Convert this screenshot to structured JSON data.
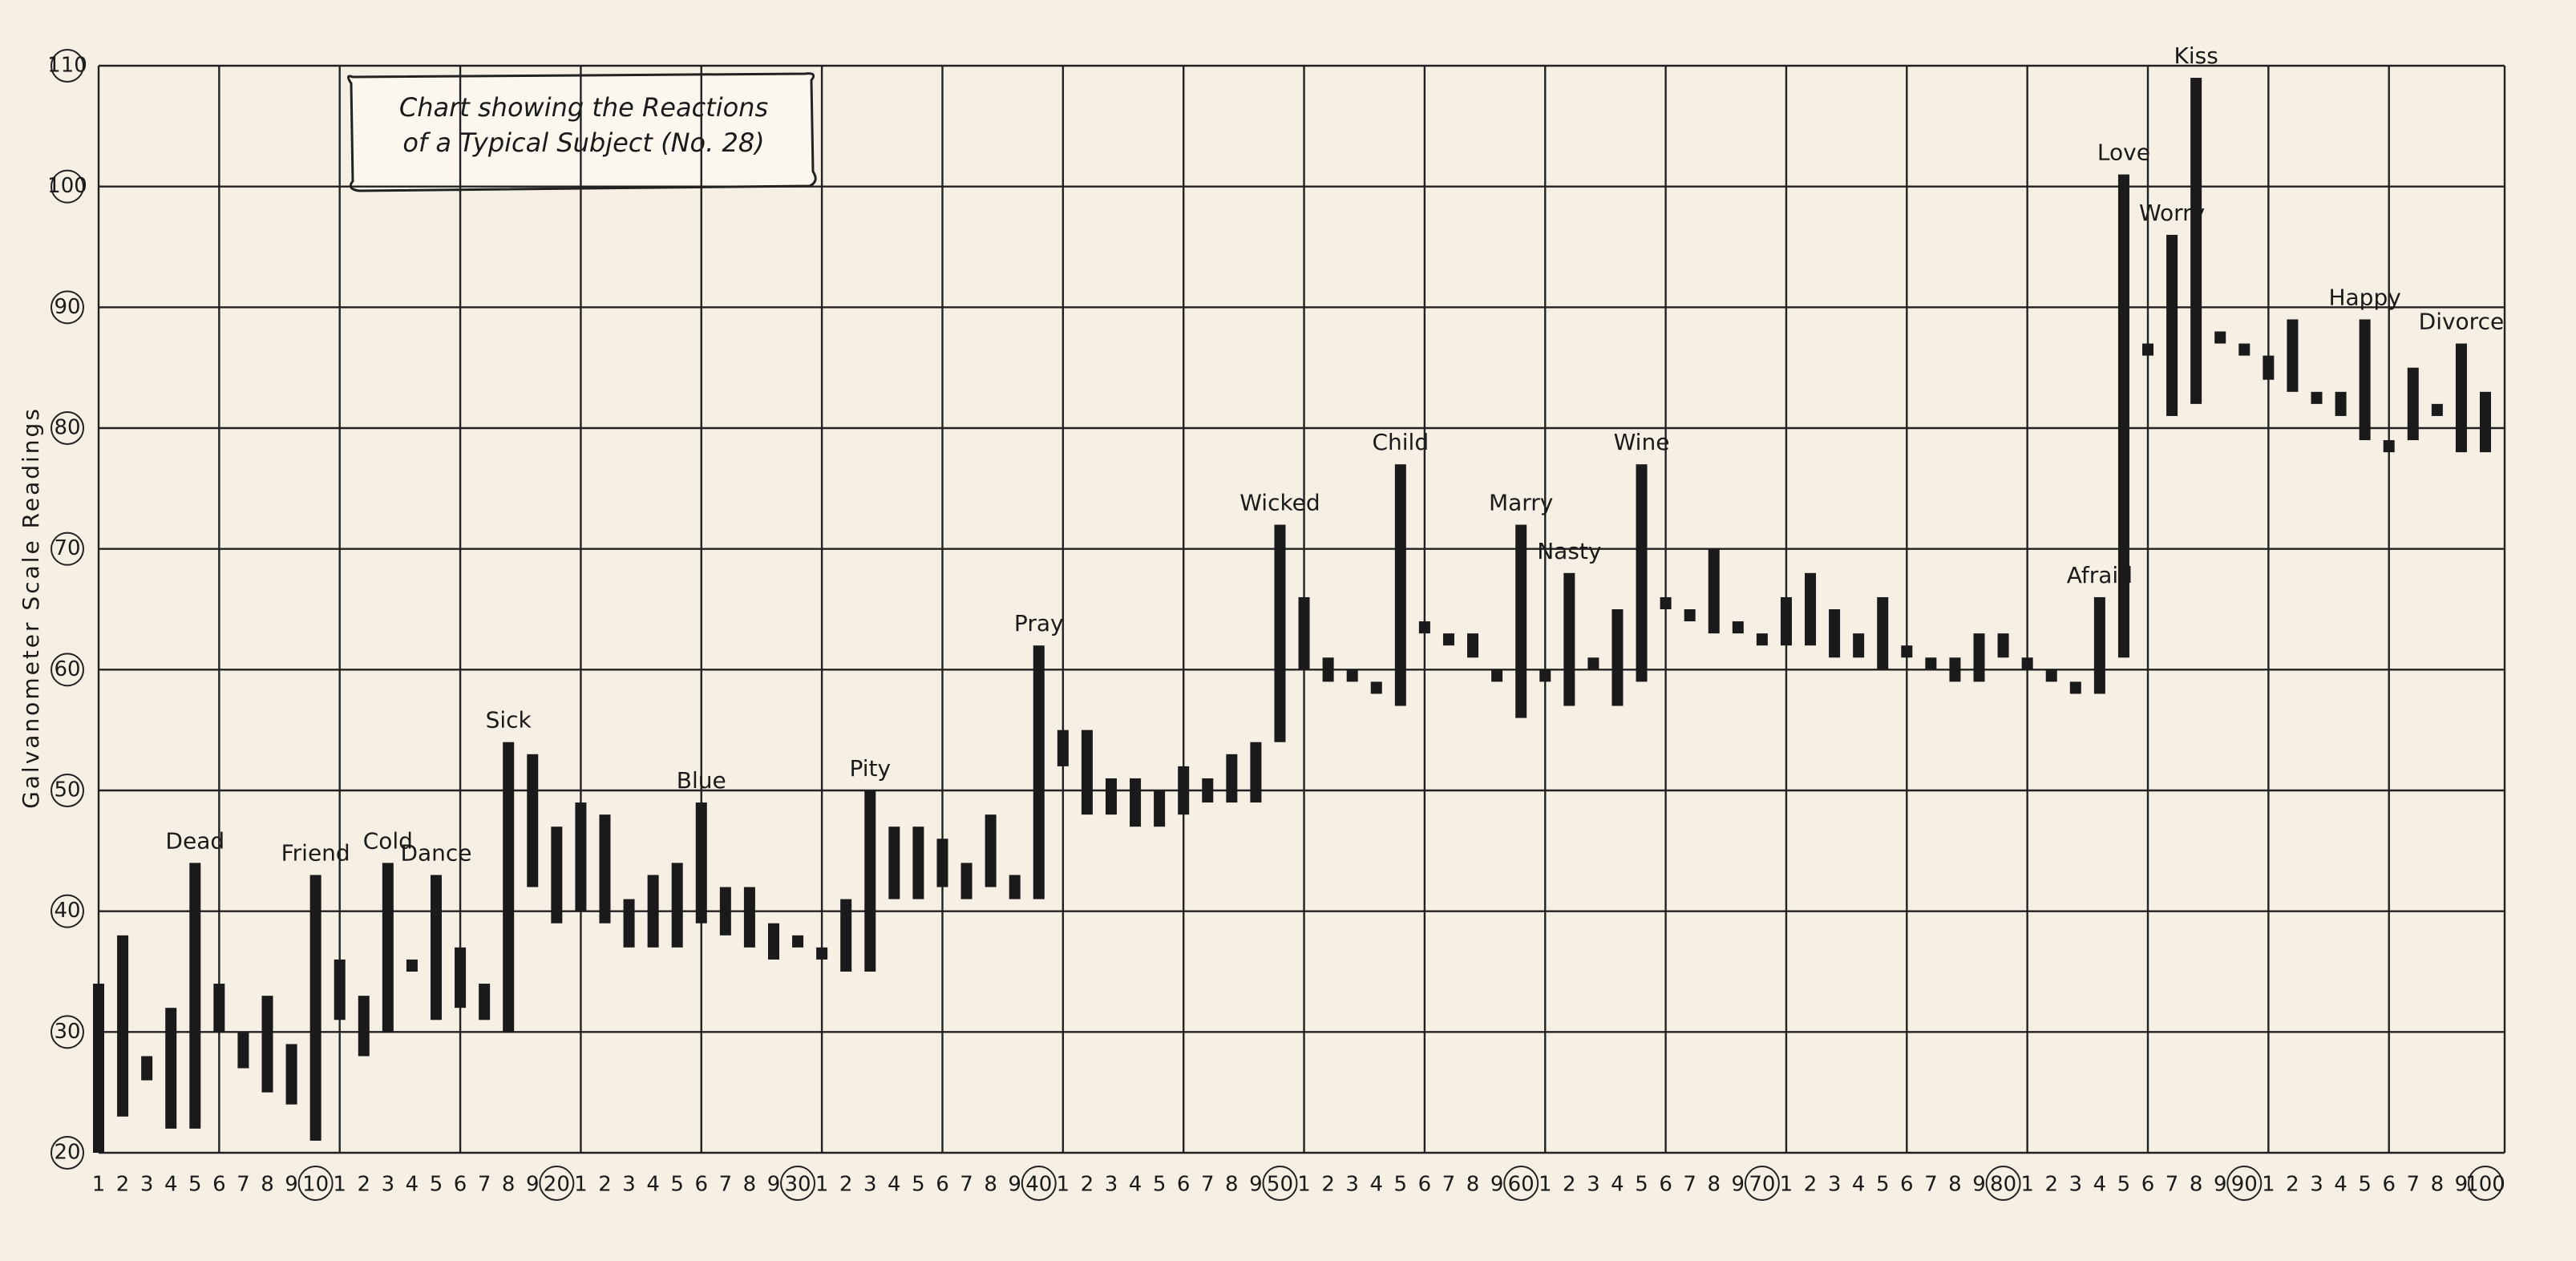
{
  "chart_data": {
    "type": "range-bar",
    "title": [
      "Chart showing the Reactions",
      "of a Typical Subject (No. 28)"
    ],
    "y_label": "Galvanometer Scale Readings",
    "categories": [
      "1",
      "2",
      "3",
      "4",
      "5",
      "6",
      "7",
      "8",
      "9",
      "10",
      "1",
      "2",
      "3",
      "4",
      "5",
      "6",
      "7",
      "8",
      "9",
      "20",
      "1",
      "2",
      "3",
      "4",
      "5",
      "6",
      "7",
      "8",
      "9",
      "30",
      "1",
      "2",
      "3",
      "4",
      "5",
      "6",
      "7",
      "8",
      "9",
      "40",
      "1",
      "2",
      "3",
      "4",
      "5",
      "6",
      "7",
      "8",
      "9",
      "50",
      "1",
      "2",
      "3",
      "4",
      "5",
      "6",
      "7",
      "8",
      "9",
      "60",
      "1",
      "2",
      "3",
      "4",
      "5",
      "6",
      "7",
      "8",
      "9",
      "70",
      "1",
      "2",
      "3",
      "4",
      "5",
      "6",
      "7",
      "8",
      "9",
      "80",
      "1",
      "2",
      "3",
      "4",
      "5",
      "6",
      "7",
      "8",
      "9",
      "90",
      "1",
      "2",
      "3",
      "4",
      "5",
      "6",
      "7",
      "8",
      "9",
      "100"
    ],
    "ranges": [
      [
        20,
        34
      ],
      [
        23,
        38
      ],
      [
        26,
        28
      ],
      [
        22,
        32
      ],
      [
        22,
        44
      ],
      [
        30,
        34
      ],
      [
        27,
        30
      ],
      [
        25,
        33
      ],
      [
        24,
        29
      ],
      [
        21,
        43
      ],
      [
        31,
        36
      ],
      [
        28,
        33
      ],
      [
        30,
        44
      ],
      [
        35,
        36
      ],
      [
        31,
        43
      ],
      [
        32,
        37
      ],
      [
        31,
        34
      ],
      [
        30,
        54
      ],
      [
        42,
        53
      ],
      [
        39,
        47
      ],
      [
        40,
        49
      ],
      [
        39,
        48
      ],
      [
        37,
        41
      ],
      [
        37,
        43
      ],
      [
        37,
        44
      ],
      [
        39,
        49
      ],
      [
        38,
        42
      ],
      [
        37,
        42
      ],
      [
        36,
        39
      ],
      [
        37,
        38
      ],
      [
        36,
        37
      ],
      [
        35,
        41
      ],
      [
        35,
        50
      ],
      [
        41,
        47
      ],
      [
        41,
        47
      ],
      [
        42,
        46
      ],
      [
        41,
        44
      ],
      [
        42,
        48
      ],
      [
        41,
        43
      ],
      [
        41,
        62
      ],
      [
        52,
        55
      ],
      [
        48,
        55
      ],
      [
        48,
        51
      ],
      [
        47,
        51
      ],
      [
        47,
        50
      ],
      [
        48,
        52
      ],
      [
        49,
        51
      ],
      [
        49,
        53
      ],
      [
        49,
        54
      ],
      [
        54,
        72
      ],
      [
        60,
        66
      ],
      [
        59,
        61
      ],
      [
        59,
        60
      ],
      [
        58,
        59
      ],
      [
        57,
        77
      ],
      [
        63,
        64
      ],
      [
        62,
        63
      ],
      [
        61,
        63
      ],
      [
        59,
        60
      ],
      [
        56,
        72
      ],
      [
        59,
        60
      ],
      [
        57,
        68
      ],
      [
        60,
        61
      ],
      [
        57,
        65
      ],
      [
        59,
        77
      ],
      [
        65,
        66
      ],
      [
        64,
        65
      ],
      [
        63,
        70
      ],
      [
        63,
        64
      ],
      [
        62,
        63
      ],
      [
        62,
        66
      ],
      [
        62,
        68
      ],
      [
        61,
        65
      ],
      [
        61,
        63
      ],
      [
        60,
        66
      ],
      [
        61,
        62
      ],
      [
        60,
        61
      ],
      [
        59,
        61
      ],
      [
        59,
        63
      ],
      [
        61,
        63
      ],
      [
        60,
        61
      ],
      [
        59,
        60
      ],
      [
        58,
        59
      ],
      [
        58,
        66
      ],
      [
        61,
        101
      ],
      [
        86,
        87
      ],
      [
        81,
        96
      ],
      [
        82,
        109
      ],
      [
        87,
        88
      ],
      [
        86,
        87
      ],
      [
        84,
        86
      ],
      [
        83,
        89
      ],
      [
        82,
        83
      ],
      [
        81,
        83
      ],
      [
        79,
        89
      ],
      [
        78,
        79
      ],
      [
        79,
        85
      ],
      [
        81,
        82
      ],
      [
        78,
        87
      ],
      [
        78,
        83
      ]
    ],
    "annotations": [
      {
        "text": "Dead",
        "index": 4
      },
      {
        "text": "Friend",
        "index": 9
      },
      {
        "text": "Cold",
        "index": 12
      },
      {
        "text": "Dance",
        "index": 14
      },
      {
        "text": "Sick",
        "index": 17
      },
      {
        "text": "Blue",
        "index": 25
      },
      {
        "text": "Pity",
        "index": 32
      },
      {
        "text": "Pray",
        "index": 39
      },
      {
        "text": "Wicked",
        "index": 49
      },
      {
        "text": "Child",
        "index": 54
      },
      {
        "text": "Marry",
        "index": 59
      },
      {
        "text": "Nasty",
        "index": 61
      },
      {
        "text": "Wine",
        "index": 64
      },
      {
        "text": "Afraid",
        "index": 83
      },
      {
        "text": "Love",
        "index": 84
      },
      {
        "text": "Worry",
        "index": 86
      },
      {
        "text": "Kiss",
        "index": 87
      },
      {
        "text": "Happy",
        "index": 94
      },
      {
        "text": "Divorce",
        "index": 98
      }
    ],
    "color": "#1a1a1a",
    "ylim": [
      20,
      110
    ],
    "yticks": [
      20,
      30,
      40,
      50,
      60,
      70,
      80,
      90,
      100,
      110
    ],
    "grid": true
  }
}
